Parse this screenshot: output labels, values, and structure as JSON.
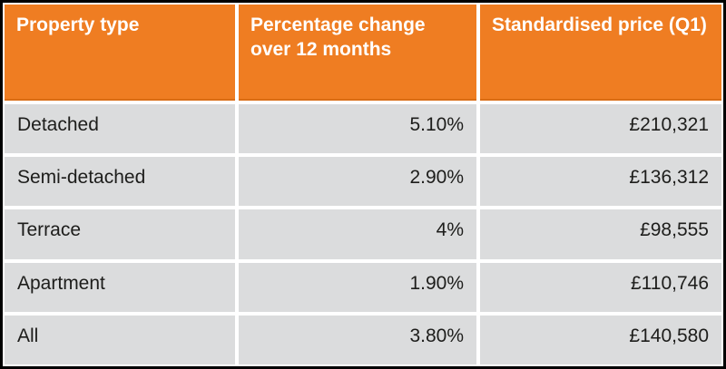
{
  "colors": {
    "header_bg": "#EF7D22",
    "header_edge": "#D96C14",
    "header_text": "#FFFFFF",
    "row_bg": "#DBDCDD",
    "row_text": "#1D1D1B",
    "grid_line": "#FFFFFF",
    "outer_border": "#000000"
  },
  "table": {
    "headers": [
      "Property type",
      "Percentage change over 12 months",
      "Standardised price (Q1)"
    ],
    "rows": [
      {
        "property": "Detached",
        "change": "5.10%",
        "price": "£210,321"
      },
      {
        "property": "Semi-detached",
        "change": "2.90%",
        "price": "£136,312"
      },
      {
        "property": "Terrace",
        "change": "4%",
        "price": "£98,555"
      },
      {
        "property": "Apartment",
        "change": "1.90%",
        "price": "£110,746"
      },
      {
        "property": "All",
        "change": "3.80%",
        "price": "£140,580"
      }
    ]
  },
  "chart_data": {
    "type": "table",
    "columns": [
      "Property type",
      "Percentage change over 12 months",
      "Standardised price (Q1)"
    ],
    "rows": [
      [
        "Detached",
        "5.10%",
        "£210,321"
      ],
      [
        "Semi-detached",
        "2.90%",
        "£136,312"
      ],
      [
        "Terrace",
        "4%",
        "£98,555"
      ],
      [
        "Apartment",
        "1.90%",
        "£110,746"
      ],
      [
        "All",
        "3.80%",
        "£140,580"
      ]
    ],
    "categories": [
      "Detached",
      "Semi-detached",
      "Terrace",
      "Apartment",
      "All"
    ],
    "series": [
      {
        "name": "Percentage change over 12 months (%)",
        "values": [
          5.1,
          2.9,
          4,
          1.9,
          3.8
        ]
      },
      {
        "name": "Standardised price Q1 (GBP)",
        "values": [
          210321,
          136312,
          98555,
          110746,
          140580
        ]
      }
    ]
  }
}
